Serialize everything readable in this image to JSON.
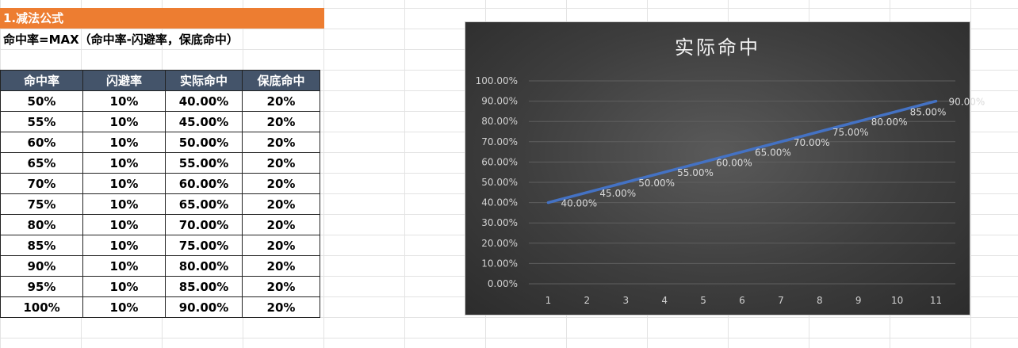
{
  "sheet": {
    "section_title": "1.减法公式",
    "formula": "命中率=MAX（命中率-闪避率，保底命中）",
    "table": {
      "headers": [
        "命中率",
        "闪避率",
        "实际命中",
        "保底命中"
      ],
      "rows": [
        [
          "50%",
          "10%",
          "40.00%",
          "20%"
        ],
        [
          "55%",
          "10%",
          "45.00%",
          "20%"
        ],
        [
          "60%",
          "10%",
          "50.00%",
          "20%"
        ],
        [
          "65%",
          "10%",
          "55.00%",
          "20%"
        ],
        [
          "70%",
          "10%",
          "60.00%",
          "20%"
        ],
        [
          "75%",
          "10%",
          "65.00%",
          "20%"
        ],
        [
          "80%",
          "10%",
          "70.00%",
          "20%"
        ],
        [
          "85%",
          "10%",
          "75.00%",
          "20%"
        ],
        [
          "90%",
          "10%",
          "80.00%",
          "20%"
        ],
        [
          "95%",
          "10%",
          "85.00%",
          "20%"
        ],
        [
          "100%",
          "10%",
          "90.00%",
          "20%"
        ]
      ]
    }
  },
  "colors": {
    "title_bg": "#ed7d31",
    "header_bg": "#44546a",
    "line": "#4472c4"
  },
  "chart_data": {
    "type": "line",
    "title": "实际命中",
    "x": [
      1,
      2,
      3,
      4,
      5,
      6,
      7,
      8,
      9,
      10,
      11
    ],
    "series": [
      {
        "values": [
          40,
          45,
          50,
          55,
          60,
          65,
          70,
          75,
          80,
          85,
          90
        ],
        "labels": [
          "40.00%",
          "45.00%",
          "50.00%",
          "55.00%",
          "60.00%",
          "65.00%",
          "70.00%",
          "75.00%",
          "80.00%",
          "85.00%",
          "90.00%"
        ]
      }
    ],
    "ylim": [
      0,
      100
    ],
    "yticks": [
      "0.00%",
      "10.00%",
      "20.00%",
      "30.00%",
      "40.00%",
      "50.00%",
      "60.00%",
      "70.00%",
      "80.00%",
      "90.00%",
      "100.00%"
    ],
    "grid": true,
    "legend": "none"
  }
}
